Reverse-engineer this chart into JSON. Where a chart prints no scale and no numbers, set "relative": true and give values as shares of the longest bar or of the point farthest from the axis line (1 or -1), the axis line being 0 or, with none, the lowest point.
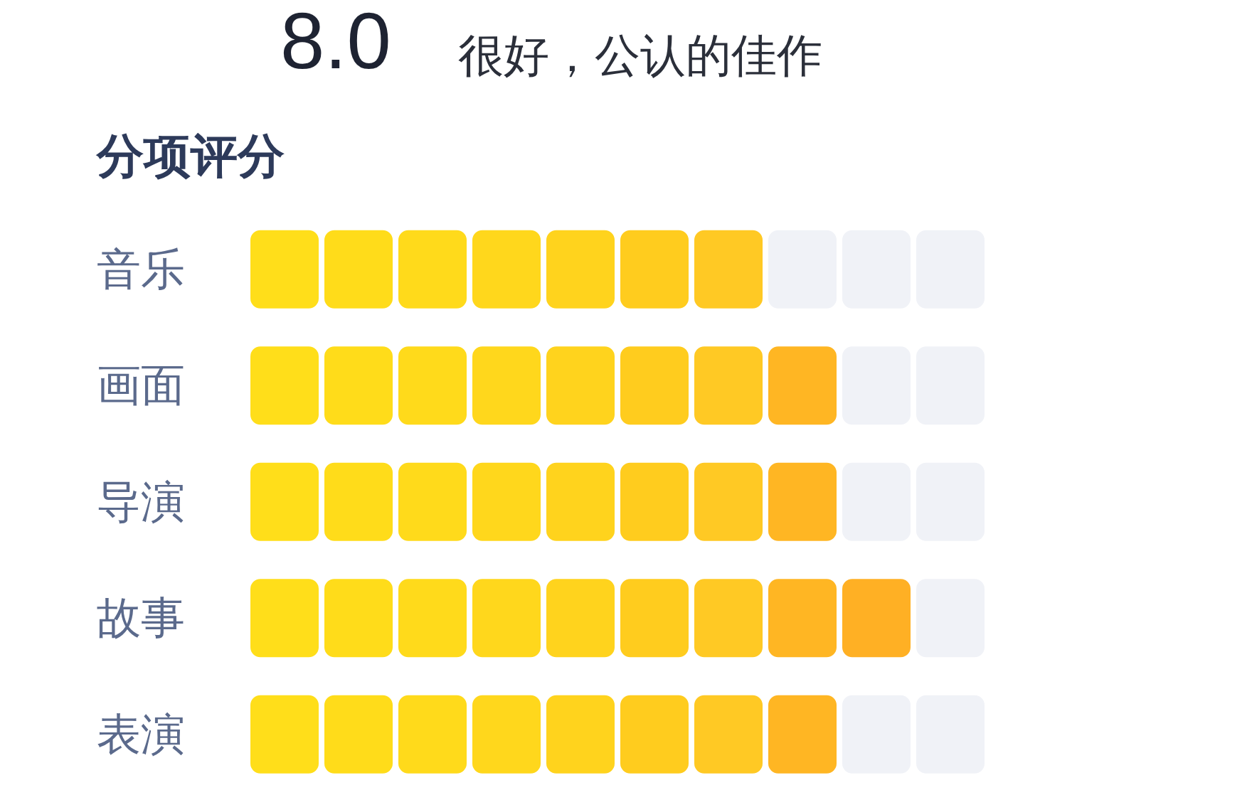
{
  "chart_data": {
    "type": "bar",
    "orientation": "horizontal",
    "stacked": true,
    "relative": true,
    "tick_labels": "y",
    "title": "分项评分",
    "annotations": [
      "8.0",
      "很好，公认的佳作"
    ],
    "categories": [
      "音乐",
      "画面",
      "导演",
      "故事",
      "表演"
    ],
    "series": [
      {
        "values": [
          0.1,
          0.1,
          0.1,
          0.1,
          0.1
        ],
        "colors": [
          "#ffde1a",
          "#ffde1a",
          "#ffde1a",
          "#ffde1a",
          "#ffde1a"
        ]
      },
      {
        "values": [
          0.1,
          0.1,
          0.1,
          0.1,
          0.1
        ],
        "colors": [
          "#ffdc1a",
          "#ffdc1a",
          "#ffdc1a",
          "#ffdc1a",
          "#ffdc1a"
        ]
      },
      {
        "values": [
          0.1,
          0.1,
          0.1,
          0.1,
          0.1
        ],
        "colors": [
          "#ffda1b",
          "#ffda1b",
          "#ffda1b",
          "#ffda1b",
          "#ffda1b"
        ]
      },
      {
        "values": [
          0.1,
          0.1,
          0.1,
          0.1,
          0.1
        ],
        "colors": [
          "#ffd71c",
          "#ffd71c",
          "#ffd71c",
          "#ffd71c",
          "#ffd71c"
        ]
      },
      {
        "values": [
          0.1,
          0.1,
          0.1,
          0.1,
          0.1
        ],
        "colors": [
          "#ffd31d",
          "#ffd31d",
          "#ffd31d",
          "#ffd31d",
          "#ffd31d"
        ]
      },
      {
        "values": [
          0.1,
          0.1,
          0.1,
          0.1,
          0.1
        ],
        "colors": [
          "#ffcc1e",
          "#ffcc1e",
          "#ffcc1e",
          "#ffcc1e",
          "#ffcc1e"
        ]
      },
      {
        "values": [
          0.1,
          0.1,
          0.1,
          0.1,
          0.1
        ],
        "colors": [
          "#ffc924",
          "#ffc924",
          "#ffc924",
          "#ffc924",
          "#ffc924"
        ]
      },
      {
        "values": [
          0.1,
          0.1,
          0.1,
          0.1,
          0.1
        ],
        "colors": [
          "#f0f2f7",
          "#ffb623",
          "#ffb623",
          "#ffb623",
          "#ffb623"
        ]
      },
      {
        "values": [
          0.1,
          0.1,
          0.1,
          0.1,
          0.1
        ],
        "colors": [
          "#f0f2f7",
          "#f0f2f7",
          "#f0f2f7",
          "#ffb024",
          "#f0f2f7"
        ]
      },
      {
        "values": [
          0.1,
          0.1,
          0.1,
          0.1,
          0.1
        ],
        "colors": [
          "#f0f2f7",
          "#f0f2f7",
          "#f0f2f7",
          "#f0f2f7",
          "#f0f2f7"
        ]
      }
    ]
  }
}
